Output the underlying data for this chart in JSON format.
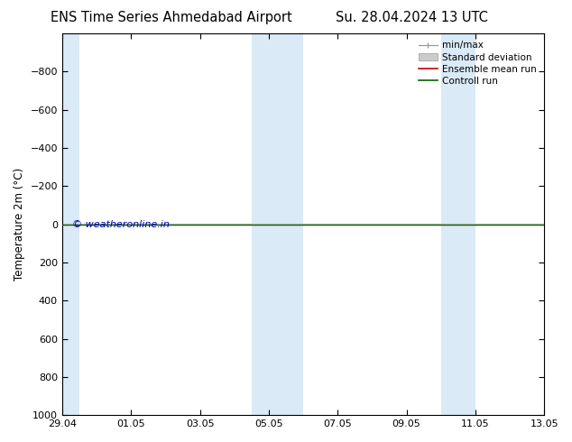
{
  "title_left": "ENS Time Series Ahmedabad Airport",
  "title_right": "Su. 28.04.2024 13 UTC",
  "ylabel": "Temperature 2m (°C)",
  "ylim_top": -1000,
  "ylim_bottom": 1000,
  "yticks": [
    -800,
    -600,
    -400,
    -200,
    0,
    200,
    400,
    600,
    800,
    1000
  ],
  "xlabels": [
    "29.04",
    "01.05",
    "03.05",
    "05.05",
    "07.05",
    "09.05",
    "11.05",
    "13.05"
  ],
  "x_tick_positions": [
    0,
    2,
    4,
    6,
    8,
    10,
    12,
    14
  ],
  "x_total": 14,
  "shaded_bands": [
    [
      0.0,
      0.5
    ],
    [
      5.5,
      6.5
    ],
    [
      6.5,
      7.0
    ],
    [
      11.0,
      12.0
    ]
  ],
  "shaded_color": "#daeaf7",
  "ensemble_mean_color": "#cc0000",
  "control_run_color": "#006600",
  "minmax_color": "#999999",
  "std_dev_color": "#cccccc",
  "legend_entries": [
    "min/max",
    "Standard deviation",
    "Ensemble mean run",
    "Controll run"
  ],
  "legend_line_colors": [
    "#999999",
    "#cccccc",
    "#cc0000",
    "#006600"
  ],
  "watermark": "© weatheronline.in",
  "watermark_color": "#0000bb",
  "background_color": "#ffffff",
  "plot_bg_color": "#ffffff",
  "title_fontsize": 10.5,
  "axis_label_fontsize": 8.5,
  "tick_fontsize": 8
}
